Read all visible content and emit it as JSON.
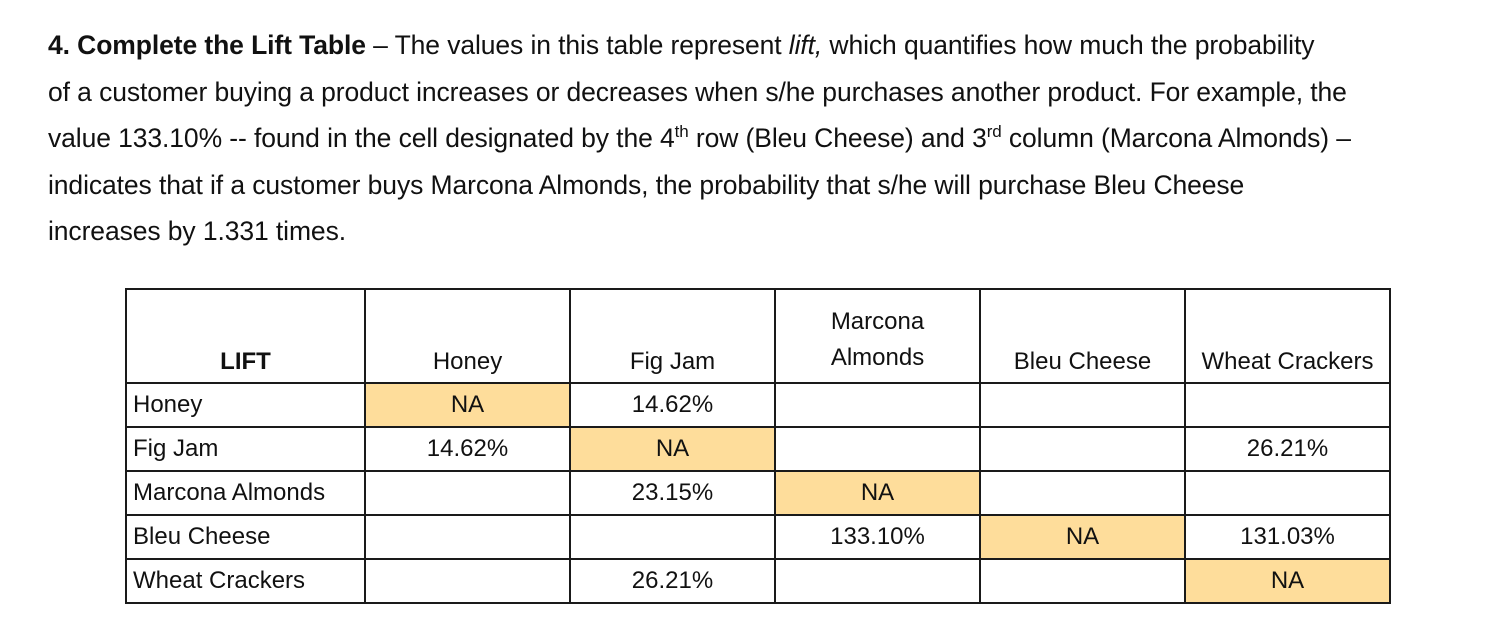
{
  "intro": {
    "heading": "4. Complete the Lift Table",
    "line1_a": " – The values in this table represent ",
    "line1_italic": "lift,",
    "line1_b": " which quantifies how much the probability",
    "line2": "of a customer buying a product increases or decreases when s/he purchases another product. For example, the",
    "line3_a": "value 133.10% -- found in the cell designated by the 4",
    "line3_sup1": "th",
    "line3_b": " row (Bleu Cheese) and 3",
    "line3_sup2": "rd",
    "line3_c": " column (Marcona Almonds) –",
    "line4": "indicates that if a customer buys Marcona Almonds, the probability that s/he will purchase Bleu Cheese",
    "line5": "increases by 1.331 times."
  },
  "table": {
    "corner": "LIFT",
    "columns": [
      "Honey",
      "Fig Jam",
      "Marcona Almonds",
      "Bleu Cheese",
      "Wheat Crackers"
    ],
    "rows": [
      {
        "label": "Honey",
        "cells": [
          "NA",
          "14.62%",
          "",
          "",
          ""
        ]
      },
      {
        "label": "Fig Jam",
        "cells": [
          "14.62%",
          "NA",
          "",
          "",
          "26.21%"
        ]
      },
      {
        "label": "Marcona Almonds",
        "cells": [
          "",
          "23.15%",
          "NA",
          "",
          ""
        ]
      },
      {
        "label": "Bleu Cheese",
        "cells": [
          "",
          "",
          "133.10%",
          "NA",
          "131.03%"
        ]
      },
      {
        "label": "Wheat Crackers",
        "cells": [
          "",
          "26.21%",
          "",
          "",
          "NA"
        ]
      }
    ],
    "highlight_color": "#fedd9b"
  }
}
